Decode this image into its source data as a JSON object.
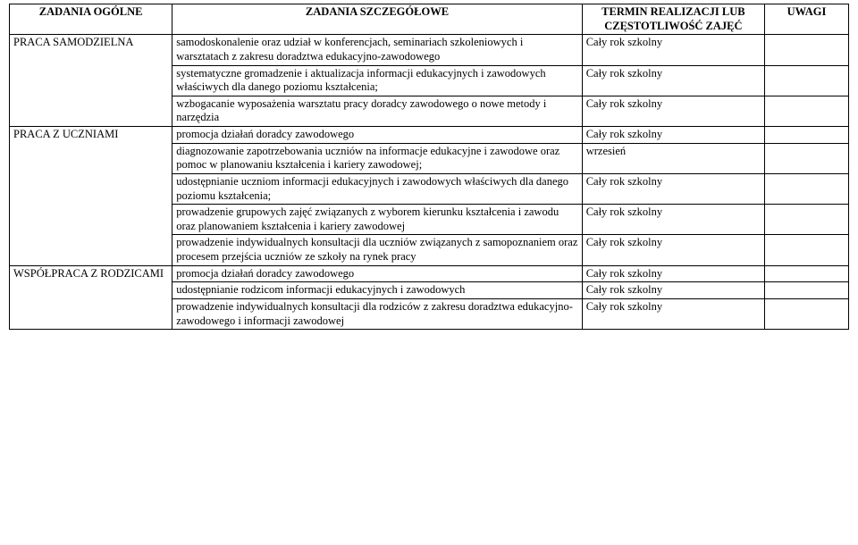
{
  "table": {
    "headers": {
      "col1": "ZADANIA OGÓLNE",
      "col2": "ZADANIA SZCZEGÓŁOWE",
      "col3": "TERMIN REALIZACJI LUB CZĘSTOTLIWOŚĆ ZAJĘĆ",
      "col4": "UWAGI"
    },
    "sections": [
      {
        "label": "PRACA SAMODZIELNA",
        "rows": [
          {
            "task": "samodoskonalenie oraz udział w konferencjach, seminariach szkoleniowych i warsztatach z zakresu doradztwa edukacyjno-zawodowego",
            "term": "Cały rok szkolny",
            "notes": ""
          },
          {
            "task": "systematyczne gromadzenie i aktualizacja informacji edukacyjnych i zawodowych właściwych dla danego poziomu kształcenia;",
            "term": "Cały rok szkolny",
            "notes": ""
          },
          {
            "task": "wzbogacanie wyposażenia warsztatu pracy doradcy zawodowego o nowe metody i narzędzia",
            "term": "Cały rok szkolny",
            "notes": ""
          }
        ]
      },
      {
        "label": "PRACA Z UCZNIAMI",
        "rows": [
          {
            "task": "promocja działań doradcy zawodowego",
            "term": "Cały rok szkolny",
            "notes": ""
          },
          {
            "task": "diagnozowanie zapotrzebowania uczniów na informacje edukacyjne i zawodowe oraz pomoc w planowaniu kształcenia i kariery zawodowej;",
            "term": "wrzesień",
            "notes": ""
          },
          {
            "task": "udostępnianie uczniom informacji edukacyjnych i zawodowych właściwych dla danego poziomu kształcenia;",
            "term": "Cały rok szkolny",
            "notes": ""
          },
          {
            "task": "prowadzenie grupowych zajęć związanych z wyborem kierunku kształcenia i zawodu oraz planowaniem kształcenia i kariery zawodowej",
            "term": "Cały rok szkolny",
            "notes": ""
          },
          {
            "task": "prowadzenie indywidualnych konsultacji dla uczniów związanych z samopoznaniem oraz  procesem przejścia uczniów ze szkoły na rynek pracy",
            "term": "Cały rok szkolny",
            "notes": ""
          }
        ]
      },
      {
        "label": "WSPÓŁPRACA Z RODZICAMI",
        "rows": [
          {
            "task": "promocja działań doradcy zawodowego",
            "term": "Cały rok szkolny",
            "notes": ""
          },
          {
            "task": "udostępnianie rodzicom informacji edukacyjnych i zawodowych",
            "term": "Cały rok szkolny",
            "notes": ""
          },
          {
            "task": "prowadzenie indywidualnych konsultacji dla rodziców z zakresu doradztwa edukacyjno-zawodowego i informacji zawodowej",
            "term": "Cały rok szkolny",
            "notes": ""
          }
        ]
      }
    ]
  }
}
